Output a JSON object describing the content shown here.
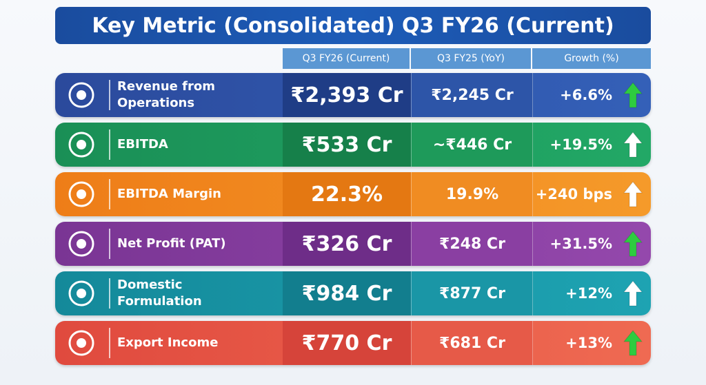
{
  "header": {
    "title": "Key Metric (Consolidated) Q3 FY26 (Current)"
  },
  "table": {
    "columns": [
      "Q3 FY26 (Current)",
      "Q3 FY25 (YoY)",
      "Growth (%)"
    ],
    "rows": [
      [
        "Revenue from Operations",
        "₹2,393 Cr",
        "₹2,245 Cr",
        "+6.6%"
      ],
      [
        "EBITDA",
        "₹533 Cr",
        "~₹446 Cr",
        "+19.5%"
      ],
      [
        "EBITDA Margin",
        "22.3%",
        "19.9%",
        "+240 bps"
      ],
      [
        "Net Profit (PAT)",
        "₹326 Cr",
        "₹248 Cr",
        "+31.5%"
      ],
      [
        "Domestic Formulation",
        "₹984 Cr",
        "₹877 Cr",
        "+12%"
      ],
      [
        "Export Income",
        "₹770 Cr",
        "₹681 Cr",
        "+13%"
      ]
    ]
  }
}
